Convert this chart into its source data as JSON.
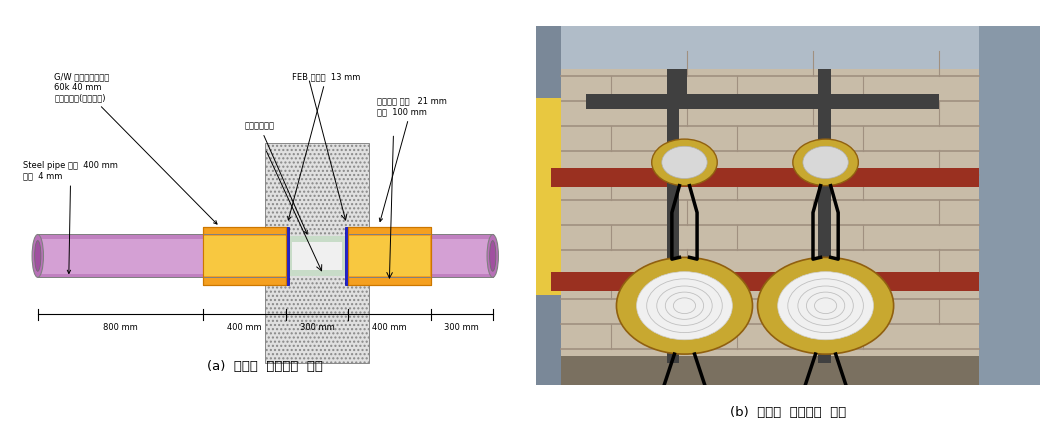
{
  "fig_width": 10.61,
  "fig_height": 4.37,
  "bg_color": "#ffffff",
  "caption_a": "(a)  관통재  내화시험  도면",
  "caption_b": "(b)  관통재  내화시험  모습",
  "labels": {
    "gw_line1": "G/W 그라스흘보온재",
    "gw_line2": "60k 40 mm",
    "gw_line3": "보온재고정(철사고정)",
    "steel_line1": "Steel pipe 내경  400 mm",
    "steel_line2": "두께  4 mm",
    "silicone": "실리콘실란트",
    "feb": "FEB 차열재  13 mm",
    "mineral_line1": "미네달즐 두께   21 mm",
    "mineral_line2": "길이  100 mm"
  },
  "dim_labels": [
    "800 mm",
    "400 mm",
    "300 mm",
    "400 mm",
    "300 mm"
  ],
  "colors": {
    "pipe_purple_outer": "#c080c0",
    "pipe_purple_light": "#d4a0d4",
    "pipe_purple_mid": "#b870b8",
    "orange_outer": "#f5a020",
    "orange_inner": "#f8c840",
    "wall_fill": "#d8d8d8",
    "blue_band": "#2222cc",
    "silicone_green": "#c8dcc8",
    "white": "#ffffff",
    "black": "#000000"
  }
}
